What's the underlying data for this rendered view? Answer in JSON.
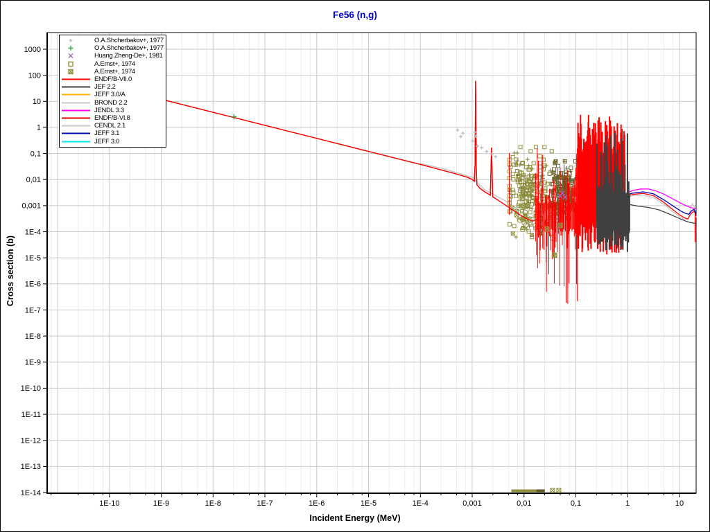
{
  "chart_data": {
    "type": "line",
    "title": "Fe56 (n,g)",
    "title_color": "#0000cc",
    "xlabel": "Incident Energy (MeV)",
    "ylabel": "Cross section (b)",
    "x_scale": "log",
    "y_scale": "log",
    "xlim_log10_mev": [
      -11.2,
      1.32
    ],
    "ylim_log10_barn": [
      -14,
      3.64
    ],
    "grid": {
      "major_color": "#c9c9c9",
      "minor_color": "#ececec",
      "x_minor_offsets": [
        0.39794,
        0.69897,
        0.87506
      ],
      "x_decade_range": [
        -11,
        1
      ]
    },
    "x_ticks": [
      [
        -10,
        "1E-10"
      ],
      [
        -9,
        "1E-9"
      ],
      [
        -8,
        "1E-8"
      ],
      [
        -7,
        "1E-7"
      ],
      [
        -6,
        "1E-6"
      ],
      [
        -5,
        "1E-5"
      ],
      [
        -4,
        "1E-4"
      ],
      [
        -3,
        "0,001"
      ],
      [
        -2,
        "0,01"
      ],
      [
        -1,
        "0,1"
      ],
      [
        0,
        "1"
      ],
      [
        1,
        "10"
      ]
    ],
    "y_ticks": [
      [
        3,
        "1000"
      ],
      [
        2,
        "100"
      ],
      [
        1,
        "10"
      ],
      [
        0,
        "1"
      ],
      [
        -1,
        "0,1"
      ],
      [
        -2,
        "0,01"
      ],
      [
        -3,
        "0,001"
      ],
      [
        -4,
        "1E-4"
      ],
      [
        -5,
        "1E-5"
      ],
      [
        -6,
        "1E-6"
      ],
      [
        -7,
        "1E-7"
      ],
      [
        -8,
        "1E-8"
      ],
      [
        -9,
        "1E-9"
      ],
      [
        -10,
        "1E-10"
      ],
      [
        -11,
        "1E-11"
      ],
      [
        -12,
        "1E-12"
      ],
      [
        -13,
        "1E-13"
      ],
      [
        -14,
        "1E-14"
      ]
    ],
    "legend": [
      {
        "marker": "plus",
        "color": "#bfbfbf",
        "size": 5,
        "label": "O.A.Shcherbakov+, 1977"
      },
      {
        "marker": "plus",
        "color": "#40a040",
        "size": 7,
        "label": "O.A.Shcherbakov+, 1977"
      },
      {
        "marker": "x",
        "color": "#9a6ab8",
        "size": 6,
        "label": "Huang Zheng-De+, 1981"
      },
      {
        "marker": "square",
        "color": "#8f8f3f",
        "size": 6,
        "label": "A.Ernst+, 1974"
      },
      {
        "marker": "square-x",
        "color": "#8f8f3f",
        "size": 6,
        "label": "A.Ernst+, 1974"
      },
      {
        "marker": "line",
        "color": "#ff0000",
        "label": "ENDF/B-VII.0"
      },
      {
        "marker": "line",
        "color": "#404040",
        "label": "JEF 2.2"
      },
      {
        "marker": "line",
        "color": "#ffb300",
        "label": "JEFF 3.0/A"
      },
      {
        "marker": "line",
        "color": "#c8c8c8",
        "label": "BROND 2.2"
      },
      {
        "marker": "line",
        "color": "#ff00ff",
        "label": "JENDL 3.3"
      },
      {
        "marker": "line",
        "color": "#e60000",
        "label": "ENDF/B-VI.8"
      },
      {
        "marker": "line",
        "color": "#c8c8c8",
        "label": "CENDL 2.1"
      },
      {
        "marker": "line",
        "color": "#0000bb",
        "label": "JEFF 3.1"
      },
      {
        "marker": "line",
        "color": "#00e6f0",
        "label": "JEFF 3.0"
      }
    ],
    "curves": {
      "common_low_energy": [
        [
          -9,
          1.08
        ],
        [
          -8,
          0.58
        ],
        [
          -7,
          0.08
        ],
        [
          -6,
          -0.42
        ],
        [
          -5,
          -0.92
        ],
        [
          -4,
          -1.42
        ],
        [
          -3.6,
          -1.63
        ],
        [
          -3.3,
          -1.79
        ],
        [
          -3.1,
          -1.91
        ],
        [
          -3.0,
          -1.99
        ],
        [
          -2.96,
          -2.07
        ],
        [
          -2.945,
          -1.4
        ],
        [
          -2.935,
          1.78
        ],
        [
          -2.922,
          -1.5
        ],
        [
          -2.91,
          -2.2
        ],
        [
          -2.85,
          -2.34
        ],
        [
          -2.75,
          -2.48
        ],
        [
          -2.65,
          -2.6
        ],
        [
          -2.628,
          -0.78
        ],
        [
          -2.605,
          -2.66
        ],
        [
          -2.5,
          -2.79
        ],
        [
          -2.35,
          -2.99
        ],
        [
          -2.2,
          -3.19
        ],
        [
          -2.05,
          -3.39
        ],
        [
          -1.92,
          -3.53
        ],
        [
          -1.83,
          -3.59
        ],
        [
          -1.76,
          -3.53
        ],
        [
          -1.72,
          -3.4
        ]
      ],
      "brond_low_energy": [
        [
          -4,
          -1.38
        ],
        [
          -3.5,
          -1.61
        ],
        [
          -3.1,
          -1.85
        ],
        [
          -2.98,
          -1.93
        ],
        [
          -2.9,
          -2.12
        ],
        [
          -2.75,
          -2.4
        ],
        [
          -2.6,
          -2.56
        ],
        [
          -2.45,
          -2.72
        ],
        [
          -2.3,
          -2.89
        ],
        [
          -2.1,
          -3.17
        ],
        [
          -1.95,
          -3.36
        ],
        [
          -1.85,
          -3.45
        ],
        [
          -1.77,
          -3.43
        ],
        [
          -1.73,
          -3.35
        ]
      ]
    },
    "series": [
      {
        "name": "JEFF 3.0/A",
        "color": "#ffb300",
        "width": 1,
        "base": "common_low_energy"
      },
      {
        "name": "JEFF 3.0",
        "color": "#00e6f0",
        "width": 1,
        "base": "common_low_energy"
      },
      {
        "name": "CENDL 2.1",
        "color": "#c8c8c8",
        "width": 1.3,
        "base": "brond_low_energy"
      },
      {
        "name": "BROND 2.2",
        "color": "#c8c8c8",
        "width": 1.3,
        "base": "brond_low_energy",
        "right_points": [
          [
            -0.07,
            -2.7
          ],
          [
            0.1,
            -2.62
          ],
          [
            0.3,
            -2.6
          ],
          [
            0.5,
            -2.7
          ],
          [
            0.7,
            -2.95
          ],
          [
            0.85,
            -3.2
          ],
          [
            1.0,
            -3.42
          ],
          [
            1.1,
            -3.55
          ],
          [
            1.17,
            -3.48
          ],
          [
            1.22,
            -3.05
          ],
          [
            1.25,
            -2.92
          ],
          [
            1.28,
            -3.02
          ],
          [
            1.31,
            -3.3
          ],
          [
            1.32,
            -3.45
          ]
        ]
      },
      {
        "name": "ENDF/B-VI.8",
        "color": "#e60000",
        "width": 1,
        "base": "common_low_energy"
      },
      {
        "name": "ENDF/B-VII.0",
        "color": "#ff0000",
        "width": 1.3,
        "base": "common_low_energy",
        "right_points": [
          [
            -0.055,
            -2.64
          ],
          [
            0.1,
            -2.57
          ],
          [
            0.3,
            -2.53
          ],
          [
            0.5,
            -2.62
          ],
          [
            0.68,
            -2.85
          ],
          [
            0.85,
            -3.12
          ],
          [
            1.0,
            -3.35
          ],
          [
            1.1,
            -3.47
          ],
          [
            1.16,
            -3.51
          ],
          [
            1.22,
            -3.3
          ],
          [
            1.27,
            -3.22
          ],
          [
            1.3,
            -3.28
          ],
          [
            1.3,
            -4.4
          ]
        ]
      },
      {
        "name": "JEF 2.2",
        "color": "#404040",
        "width": 1.3,
        "right_points": [
          [
            -0.07,
            -2.88
          ],
          [
            0.05,
            -2.96
          ],
          [
            0.2,
            -3.02
          ],
          [
            0.4,
            -3.07
          ],
          [
            0.6,
            -3.16
          ],
          [
            0.8,
            -3.32
          ],
          [
            0.95,
            -3.45
          ],
          [
            1.1,
            -3.58
          ],
          [
            1.2,
            -3.64
          ],
          [
            1.32,
            -3.69
          ]
        ]
      },
      {
        "name": "JEFF 3.1",
        "color": "#0000bb",
        "width": 1.3,
        "right_points": [
          [
            -0.055,
            -2.6
          ],
          [
            0.1,
            -2.52
          ],
          [
            0.3,
            -2.47
          ],
          [
            0.5,
            -2.55
          ],
          [
            0.7,
            -2.78
          ],
          [
            0.88,
            -3.02
          ],
          [
            1.02,
            -3.2
          ],
          [
            1.12,
            -3.3
          ],
          [
            1.18,
            -3.33
          ],
          [
            1.24,
            -3.18
          ],
          [
            1.28,
            -3.15
          ],
          [
            1.31,
            -3.28
          ],
          [
            1.32,
            -3.4
          ]
        ]
      },
      {
        "name": "JENDL 3.3",
        "color": "#ff00ff",
        "width": 1.3,
        "right_points": [
          [
            -0.055,
            -2.54
          ],
          [
            0.1,
            -2.42
          ],
          [
            0.25,
            -2.36
          ],
          [
            0.4,
            -2.36
          ],
          [
            0.55,
            -2.44
          ],
          [
            0.7,
            -2.56
          ],
          [
            0.85,
            -2.72
          ],
          [
            1.0,
            -2.88
          ],
          [
            1.1,
            -2.98
          ],
          [
            1.2,
            -3.06
          ],
          [
            1.3,
            -3.12
          ],
          [
            1.32,
            -3.14
          ]
        ]
      }
    ],
    "resonance_regions": [
      {
        "name": "endf-b-vii-resolved",
        "color": "#ff0000",
        "seed": 101,
        "count": 62,
        "width": 1,
        "logE1": -1.78,
        "logE2": -0.97,
        "top_lo": -2.9,
        "top_hi": -0.6,
        "top_pow": 2.6,
        "bot_lo": -3.9,
        "bot_hi": -6.9,
        "bot_pow": 3
      },
      {
        "name": "endf-b-vii-dense",
        "color": "#ff0000",
        "seed": 102,
        "count": 170,
        "width": 2,
        "logE1": -0.97,
        "logE2": -0.055,
        "top_lo": -1.05,
        "top_hi": 0.5,
        "top_pow": 3,
        "bot_lo": -3.55,
        "bot_hi": -4.9,
        "bot_pow": 2.5
      },
      {
        "name": "jef-2-2-dense",
        "color": "#404040",
        "seed": 103,
        "count": 110,
        "width": 2,
        "logE1": -0.6,
        "logE2": 0.035,
        "top_lo": -2.55,
        "top_hi": -0.15,
        "top_pow": 4,
        "bot_lo": -3.85,
        "bot_hi": -4.8,
        "bot_pow": 2.5
      }
    ],
    "isolated_spikes": [
      {
        "color": "#ff0000",
        "logE": -2.285,
        "top": -0.98,
        "bot": -3.35
      }
    ],
    "scatter": {
      "clusters": [
        {
          "name": "ernst-1974-squares",
          "marker": "square",
          "color": "#8f8f3f",
          "size": 5,
          "count": 150,
          "seed": 7,
          "leMean": -1.88,
          "leSd": 0.22,
          "leMin": -2.28,
          "leMax": -1.34,
          "lvMean": -2.3,
          "lvSd": 0.75,
          "lvMin": -4.2,
          "lvMax": -0.75
        },
        {
          "name": "shcherbakov-1977-olive-plus",
          "marker": "plus",
          "color": "#85853a",
          "size": 6,
          "count": 70,
          "seed": 11,
          "leMean": -1.82,
          "leSd": 0.24,
          "leMin": -2.28,
          "leMax": -1.34,
          "lvMean": -2.45,
          "lvSd": 0.65,
          "lvMin": -4.2,
          "lvMax": -0.75
        },
        {
          "name": "ernst-1974-crossed-light",
          "marker": "square-x",
          "color": "#8f8f3f",
          "size": 5,
          "count": 20,
          "seed": 41,
          "leMean": -1.9,
          "leSd": 0.2,
          "leMin": -2.28,
          "leMax": -1.34,
          "lvMean": -3.3,
          "lvSd": 0.6,
          "lvMin": -4.5,
          "lvMax": -1.5
        },
        {
          "name": "dark-cluster-squares",
          "marker": "square",
          "color": "#6e6430",
          "size": 5,
          "count": 120,
          "seed": 23,
          "leMean": -1.21,
          "leSd": 0.16,
          "leMin": -1.56,
          "leMax": -0.8,
          "lvMean": -2.5,
          "lvSd": 0.5,
          "lvMin": -4.15,
          "lvMax": -1.3
        },
        {
          "name": "dark-cluster-plus",
          "marker": "plus",
          "color": "#6e6430",
          "size": 6,
          "count": 90,
          "seed": 29,
          "leMean": -1.18,
          "leSd": 0.17,
          "leMin": -1.56,
          "leMax": -0.8,
          "lvMean": -2.6,
          "lvSd": 0.5,
          "lvMin": -4.15,
          "lvMax": -1.3
        },
        {
          "name": "dark-cluster-crossed",
          "marker": "square-x",
          "color": "#6e6430",
          "size": 5,
          "count": 36,
          "seed": 31,
          "leMean": -1.27,
          "leSd": 0.16,
          "leMin": -1.56,
          "leMax": -0.8,
          "lvMean": -2.4,
          "lvSd": 0.55,
          "lvMin": -4.15,
          "lvMax": -1.3
        },
        {
          "name": "ernst-1974-circles",
          "marker": "circle",
          "color": "#8f8f3f",
          "size": 7,
          "count": 15,
          "seed": 37,
          "uniform": true,
          "leMin": -2.1,
          "leMax": -1.42,
          "lvMin": -4.55,
          "lvMax": -3.2
        }
      ],
      "points": [
        {
          "name": "shcherbakov-gray",
          "marker": "plus",
          "color": "#bfbfbf",
          "size": 5,
          "pts": [
            [
              -3.28,
              -0.1
            ],
            [
              -3.22,
              -0.35
            ],
            [
              -3.18,
              -0.22
            ],
            [
              -2.99,
              -0.52
            ],
            [
              -2.95,
              -0.18
            ],
            [
              -2.93,
              -0.34
            ],
            [
              -2.9,
              -0.72
            ],
            [
              -2.82,
              -0.78
            ],
            [
              -2.72,
              -0.92
            ],
            [
              -2.62,
              -1.02
            ],
            [
              -2.55,
              -1.12
            ]
          ]
        },
        {
          "name": "shcherbakov-thermal-green",
          "marker": "plus",
          "color": "#40a040",
          "size": 8,
          "pts": [
            [
              -7.597,
              0.41
            ]
          ]
        },
        {
          "name": "huang-zheng-de",
          "marker": "x",
          "color": "#9a6ab8",
          "size": 6,
          "pts": [
            [
              -1.26,
              -2.52
            ],
            [
              -1.21,
              -2.68
            ],
            [
              -1.31,
              -2.62
            ]
          ]
        },
        {
          "name": "ernst-low-crossed",
          "marker": "square-x",
          "color": "#8f8f3f",
          "size": 6,
          "pts": [
            [
              -1.41,
              -4.9
            ],
            [
              -1.56,
              -3.9
            ],
            [
              -1.3,
              -3.76
            ]
          ]
        }
      ]
    },
    "bottom_markers": {
      "bars": [
        {
          "le1": -2.245,
          "le2": -1.6,
          "color": "#8f8f3f"
        },
        {
          "le1": -1.76,
          "le2": -1.6,
          "color": "#5f5a28"
        }
      ],
      "crossed_x_logE": [
        -1.45,
        -1.33
      ],
      "crossed_color": "#8f8f3f"
    }
  }
}
